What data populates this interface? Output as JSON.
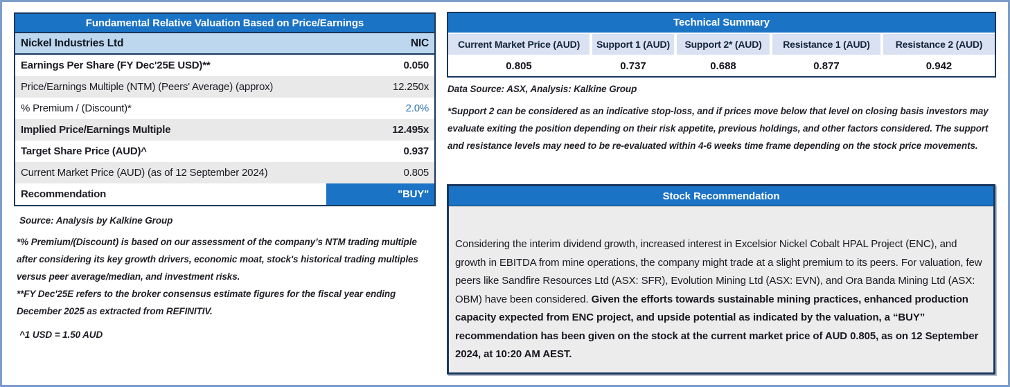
{
  "colors": {
    "header_blue": "#1b73c5",
    "navy_border": "#17375e",
    "frame_border": "#7d9dc9",
    "light_blue_row": "#bdd7ee",
    "alt_row_gray": "#e9e9e9",
    "tech_header_bg": "#d9e1f2",
    "body_gray": "#ececec",
    "premium_value_blue": "#2e75b6"
  },
  "valuation_table": {
    "title": "Fundamental Relative Valuation Based on Price/Earnings",
    "company": "Nickel Industries Ltd",
    "ticker": "NIC",
    "rows": [
      {
        "label": "Earnings Per Share (FY Dec'25E USD)**",
        "value": "0.050"
      },
      {
        "label": "Price/Earnings Multiple (NTM) (Peers' Average) (approx)",
        "value": "12.250x"
      },
      {
        "label": "% Premium / (Discount)*",
        "value": "2.0%"
      },
      {
        "label": "Implied Price/Earnings Multiple",
        "value": "12.495x"
      },
      {
        "label": "Target Share Price (AUD)^",
        "value": "0.937"
      },
      {
        "label": "Current Market Price (AUD) (as of 12 September 2024)",
        "value": "0.805"
      },
      {
        "label": "Recommendation",
        "value": "\"BUY\""
      }
    ],
    "source": "Source: Analysis by Kalkine Group",
    "footnotes": [
      "*% Premium/(Discount) is based on our assessment of the company’s NTM trading multiple after considering its key growth drivers, economic moat, stock's historical trading multiples versus peer average/median, and investment risks.",
      "**FY Dec'25E refers to the broker consensus estimate figures for the fiscal year ending December 2025 as extracted from REFINITIV.",
      "^1 USD = 1.50 AUD"
    ]
  },
  "technical_summary": {
    "title": "Technical Summary",
    "columns": [
      {
        "header": "Current Market Price (AUD)",
        "value": "0.805"
      },
      {
        "header": "Support 1 (AUD)",
        "value": "0.737"
      },
      {
        "header": "Support 2* (AUD)",
        "value": "0.688"
      },
      {
        "header": "Resistance 1 (AUD)",
        "value": "0.877"
      },
      {
        "header": "Resistance 2 (AUD)",
        "value": "0.942"
      }
    ],
    "data_source": "Data Source: ASX, Analysis: Kalkine Group",
    "note": "*Support 2 can be considered as an indicative stop-loss, and if prices move below that level on closing basis investors may evaluate exiting the position depending on their risk appetite, previous holdings, and other factors considered. The support and resistance levels may need to be re-evaluated within 4-6 weeks time frame depending on the stock price movements."
  },
  "stock_recommendation": {
    "title": "Stock Recommendation",
    "body_regular": "Considering the interim dividend growth, increased interest in Excelsior Nickel Cobalt HPAL Project (ENC), and growth in EBITDA from mine operations, the company might trade at a slight premium to its peers. For valuation, few peers like Sandfire Resources Ltd (ASX: SFR), Evolution Mining Ltd (ASX: EVN), and Ora Banda Mining Ltd (ASX: OBM) have been considered. ",
    "body_bold": "Given the efforts towards sustainable mining practices, enhanced production capacity expected from ENC project, and upside potential as indicated by the valuation, a “BUY” recommendation has been given on the stock at the current market price of AUD 0.805, as on 12 September 2024, at 10:20 AM AEST."
  }
}
